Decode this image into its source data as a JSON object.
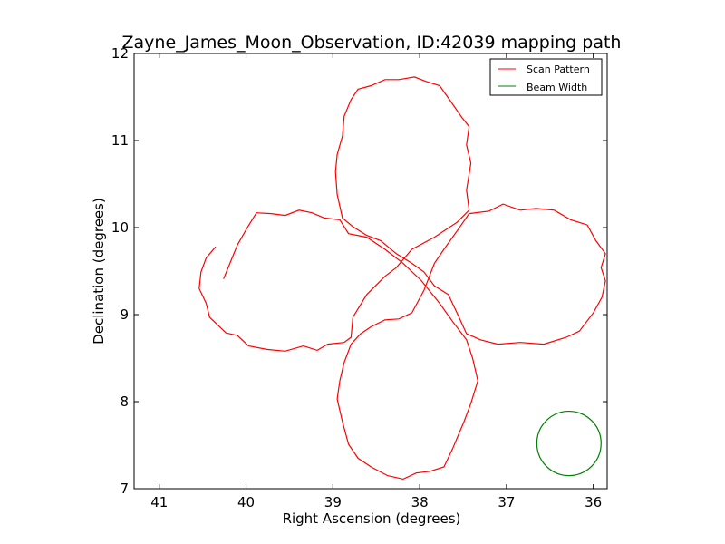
{
  "chart_data": {
    "type": "line",
    "title": "Zayne_James_Moon_Observation, ID:42039 mapping path",
    "xlabel": "Right Ascension (degrees)",
    "ylabel": "Declination (degrees)",
    "xlim": [
      41.29,
      35.84
    ],
    "ylim": [
      7,
      12
    ],
    "x_inverted": true,
    "xticks": [
      41,
      40,
      39,
      38,
      37,
      36
    ],
    "yticks": [
      7,
      8,
      9,
      10,
      11,
      12
    ],
    "grid": false,
    "legend": {
      "placement": "top-right",
      "entries": [
        "Scan Pattern",
        "Beam Width"
      ]
    },
    "series": [
      {
        "name": "Scan Pattern",
        "color": "#ff0000",
        "ra": [
          40.35,
          40.46,
          40.52,
          40.54,
          40.46,
          40.42,
          40.23,
          40.1,
          39.97,
          39.76,
          39.55,
          39.34,
          39.18,
          39.06,
          38.87,
          38.79,
          38.77,
          38.61,
          38.4,
          38.27,
          38.09,
          37.83,
          37.57,
          37.43,
          37.46,
          37.41,
          37.46,
          37.43,
          37.51,
          37.67,
          37.77,
          37.93,
          38.06,
          38.24,
          38.4,
          38.56,
          38.71,
          38.79,
          38.87,
          38.89,
          38.95,
          38.97,
          38.95,
          38.89,
          38.77,
          38.61,
          38.45,
          38.27,
          38.09,
          37.95,
          37.83,
          37.67,
          37.57,
          37.46,
          37.3,
          37.1,
          36.84,
          36.57,
          36.31,
          36.16,
          36.0,
          35.9,
          35.86,
          35.91,
          35.86,
          35.97,
          36.07,
          36.26,
          36.45,
          36.66,
          36.84,
          37.04,
          37.2,
          37.43,
          37.57,
          37.72,
          37.83,
          37.95,
          38.09,
          38.24,
          38.4,
          38.56,
          38.68,
          38.79,
          38.87,
          38.92,
          38.95,
          38.89,
          38.82,
          38.71,
          38.56,
          38.37,
          38.19,
          38.04,
          37.88,
          37.72,
          37.62,
          37.49,
          37.41,
          37.33,
          37.39,
          37.46,
          37.62,
          37.77,
          37.98,
          38.19,
          38.4,
          38.61,
          38.82,
          38.92,
          39.1,
          39.24,
          39.39,
          39.55,
          39.71,
          39.88,
          39.98,
          40.1,
          40.26
        ],
        "dec": [
          9.78,
          9.65,
          9.49,
          9.3,
          9.13,
          8.97,
          8.79,
          8.76,
          8.64,
          8.6,
          8.58,
          8.64,
          8.59,
          8.66,
          8.68,
          8.74,
          8.97,
          9.23,
          9.44,
          9.54,
          9.75,
          9.89,
          10.06,
          10.2,
          10.43,
          10.74,
          10.95,
          11.16,
          11.26,
          11.49,
          11.63,
          11.68,
          11.73,
          11.7,
          11.7,
          11.63,
          11.59,
          11.47,
          11.28,
          11.05,
          10.84,
          10.64,
          10.38,
          10.11,
          10.01,
          9.91,
          9.85,
          9.7,
          9.59,
          9.49,
          9.33,
          9.23,
          9.02,
          8.78,
          8.71,
          8.66,
          8.68,
          8.66,
          8.74,
          8.81,
          9.02,
          9.2,
          9.39,
          9.54,
          9.7,
          9.85,
          10.03,
          10.09,
          10.2,
          10.22,
          10.2,
          10.27,
          10.19,
          10.16,
          9.96,
          9.75,
          9.59,
          9.28,
          9.02,
          8.95,
          8.94,
          8.86,
          8.78,
          8.66,
          8.45,
          8.24,
          8.03,
          7.77,
          7.51,
          7.35,
          7.25,
          7.15,
          7.11,
          7.18,
          7.2,
          7.25,
          7.46,
          7.77,
          7.98,
          8.24,
          8.5,
          8.71,
          8.92,
          9.13,
          9.39,
          9.59,
          9.75,
          9.89,
          9.93,
          10.09,
          10.11,
          10.17,
          10.2,
          10.14,
          10.16,
          10.17,
          10.01,
          9.8,
          9.41
        ]
      },
      {
        "name": "Beam Width",
        "color": "#008000",
        "type": "circle",
        "center_ra": 36.28,
        "center_dec": 7.52,
        "radius_deg": 0.37
      }
    ]
  }
}
